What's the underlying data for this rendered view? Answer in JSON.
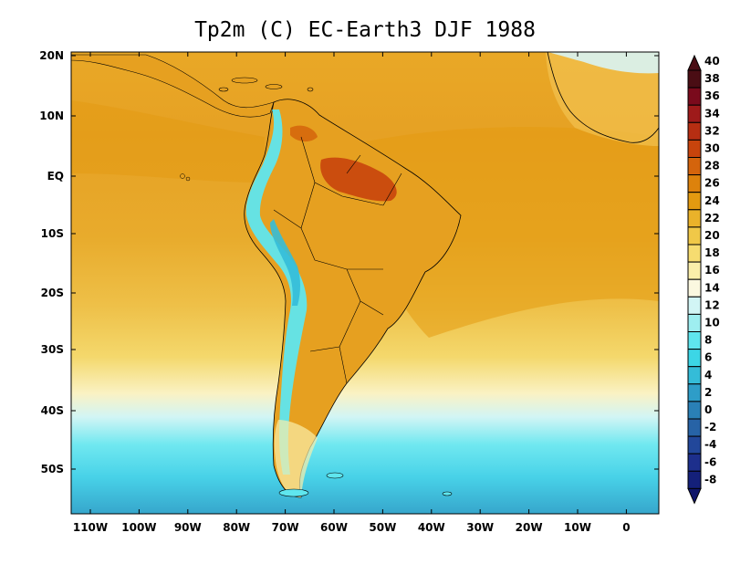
{
  "title": "Tp2m (C)  EC-Earth3 DJF 1988",
  "lat_labels": [
    "20N",
    "10N",
    "EQ",
    "10S",
    "20S",
    "30S",
    "40S",
    "50S"
  ],
  "lon_labels": [
    "110W",
    "100W",
    "90W",
    "80W",
    "70W",
    "60W",
    "50W",
    "40W",
    "30W",
    "20W",
    "10W",
    "0"
  ],
  "colorbar": {
    "levels": [
      "40",
      "38",
      "36",
      "34",
      "32",
      "30",
      "28",
      "26",
      "24",
      "22",
      "20",
      "18",
      "16",
      "14",
      "12",
      "10",
      "8",
      "6",
      "4",
      "2",
      "0",
      "-2",
      "-4",
      "-6",
      "-8"
    ],
    "colors": [
      "#4a0d14",
      "#7a0a1c",
      "#9e1a1a",
      "#b62e12",
      "#c8440c",
      "#d4640c",
      "#dd820c",
      "#e39a10",
      "#eab22a",
      "#f0c848",
      "#f6dc70",
      "#faeeaa",
      "#fbf8e0",
      "#d2f5f5",
      "#9eeef0",
      "#5fe6ee",
      "#3cd6e6",
      "#34bcd8",
      "#2e9dc8",
      "#2a80b6",
      "#2763a6",
      "#22479a",
      "#1d2f8c",
      "#14207a",
      "#0f156a"
    ]
  }
}
